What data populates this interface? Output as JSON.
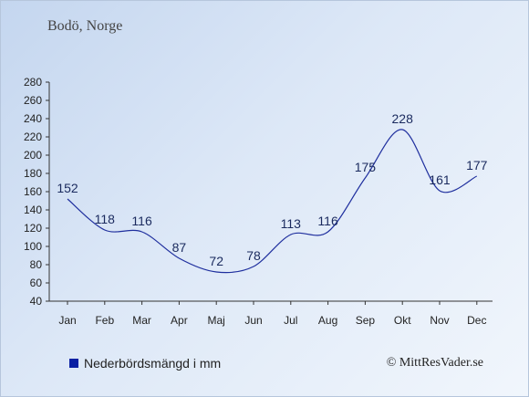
{
  "chart_data": {
    "type": "line",
    "title": "Bodö, Norge",
    "categories": [
      "Jan",
      "Feb",
      "Mar",
      "Apr",
      "Maj",
      "Jun",
      "Jul",
      "Aug",
      "Sep",
      "Okt",
      "Nov",
      "Dec"
    ],
    "series": [
      {
        "name": "Nederbördsmängd i mm",
        "values": [
          152,
          118,
          116,
          87,
          72,
          78,
          113,
          116,
          175,
          228,
          161,
          177
        ]
      }
    ],
    "ylim": [
      40,
      280
    ],
    "yticks": [
      40,
      60,
      80,
      100,
      120,
      140,
      160,
      180,
      200,
      220,
      240,
      260,
      280
    ],
    "grid": false,
    "legend": "bottom-left",
    "line_color": "#1f2f9e",
    "label_color": "#1a2a5e"
  },
  "legend_label": "Nederbördsmängd i mm",
  "copyright": "© MittResVader.se"
}
